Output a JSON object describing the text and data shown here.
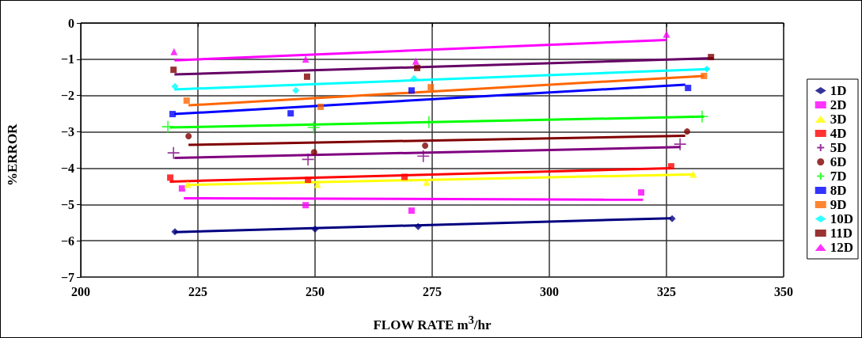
{
  "chart_data": {
    "type": "scatter",
    "xlabel": "FLOW RATE m$^{3}$/hr",
    "ylabel": "%ERROR",
    "xlim": [
      200,
      350
    ],
    "xticks": [
      200,
      225,
      250,
      275,
      300,
      325,
      350
    ],
    "ylim": [
      -7,
      0
    ],
    "yticks": [
      -7,
      -6,
      -5,
      -4,
      -3,
      -2,
      -1,
      0
    ],
    "grid": true,
    "legend": "right",
    "series": [
      {
        "name": "1D",
        "color": "#000080",
        "marker": "diamond",
        "x": [
          220.1,
          250,
          272,
          326.2
        ],
        "values": [
          -5.75,
          -5.68,
          -5.61,
          -5.39
        ]
      },
      {
        "name": "2D",
        "color": "#ff00ff",
        "marker": "square",
        "x": [
          221.6,
          248,
          270.6,
          319.6
        ],
        "values": [
          -4.56,
          -5.02,
          -5.17,
          -4.67
        ]
      },
      {
        "name": "3D",
        "color": "#ffff00",
        "marker": "triangle",
        "x": [
          222.8,
          250.5,
          273.8,
          330.7
        ],
        "values": [
          -4.45,
          -4.45,
          -4.39,
          -4.17
        ]
      },
      {
        "name": "4D",
        "color": "#ff0000",
        "marker": "square",
        "x": [
          219.1,
          248.5,
          269.1,
          326
        ],
        "values": [
          -4.26,
          -4.32,
          -4.24,
          -3.95
        ]
      },
      {
        "name": "5D",
        "color": "#800080",
        "marker": "cross",
        "x": [
          219.8,
          248.5,
          273.1,
          327.9
        ],
        "values": [
          -3.58,
          -3.76,
          -3.67,
          -3.34
        ]
      },
      {
        "name": "6D",
        "color": "#800000",
        "marker": "circle",
        "x": [
          223,
          249.8,
          273.5,
          329.4
        ],
        "values": [
          -3.12,
          -3.56,
          -3.38,
          -2.99
        ]
      },
      {
        "name": "7D",
        "color": "#00ff00",
        "marker": "cross",
        "x": [
          218.6,
          249.7,
          274.3,
          332.6
        ],
        "values": [
          -2.86,
          -2.88,
          -2.73,
          -2.58
        ]
      },
      {
        "name": "8D",
        "color": "#0000ff",
        "marker": "square",
        "x": [
          219.6,
          244.8,
          270.6,
          329.6
        ],
        "values": [
          -2.51,
          -2.49,
          -1.86,
          -1.79
        ]
      },
      {
        "name": "9D",
        "color": "#ff6600",
        "marker": "square",
        "x": [
          222.6,
          251.2,
          274.7,
          333
        ],
        "values": [
          -2.14,
          -2.31,
          -1.77,
          -1.46
        ]
      },
      {
        "name": "10D",
        "color": "#00ffff",
        "marker": "diamond",
        "x": [
          220.1,
          245.9,
          271.1,
          333.6
        ],
        "values": [
          -1.75,
          -1.86,
          -1.53,
          -1.27
        ]
      },
      {
        "name": "11D",
        "color": "#800000",
        "marker": "square",
        "x": [
          219.8,
          248.3,
          271.8,
          334.5
        ],
        "values": [
          -1.29,
          -1.48,
          -1.24,
          -0.94
        ]
      },
      {
        "name": "12D",
        "color": "#ff00ff",
        "marker": "triangle",
        "x": [
          219.9,
          248,
          271.5,
          325
        ],
        "values": [
          -0.79,
          -1.0,
          -1.05,
          -0.31
        ]
      },
      {
        "type": "line",
        "color": "#000080",
        "marker": "none",
        "x": [
          220,
          326
        ],
        "values": [
          -5.76,
          -5.38
        ]
      },
      {
        "type": "line",
        "color": "#ff00ff",
        "marker": "none",
        "x": [
          222,
          320
        ],
        "values": [
          -4.83,
          -4.87
        ]
      },
      {
        "type": "line",
        "color": "#ffff00",
        "marker": "none",
        "x": [
          223,
          331
        ],
        "values": [
          -4.46,
          -4.17
        ]
      },
      {
        "type": "line",
        "color": "#ff0000",
        "marker": "none",
        "x": [
          219,
          326
        ],
        "values": [
          -4.37,
          -4.0
        ]
      },
      {
        "type": "line",
        "color": "#800080",
        "marker": "none",
        "x": [
          220,
          328
        ],
        "values": [
          -3.72,
          -3.42
        ]
      },
      {
        "type": "line",
        "color": "#800000",
        "marker": "none",
        "x": [
          223,
          329
        ],
        "values": [
          -3.36,
          -3.11
        ]
      },
      {
        "type": "line",
        "color": "#00ff00",
        "marker": "none",
        "x": [
          219,
          333
        ],
        "values": [
          -2.88,
          -2.58
        ]
      },
      {
        "type": "line",
        "color": "#0000ff",
        "marker": "none",
        "x": [
          220,
          329
        ],
        "values": [
          -2.51,
          -1.7
        ]
      },
      {
        "type": "line",
        "color": "#ff6600",
        "marker": "none",
        "x": [
          223,
          333
        ],
        "values": [
          -2.27,
          -1.46
        ]
      },
      {
        "type": "line",
        "color": "#00ffff",
        "marker": "none",
        "x": [
          220,
          334
        ],
        "values": [
          -1.83,
          -1.27
        ]
      },
      {
        "type": "line",
        "color": "#660066",
        "marker": "none",
        "x": [
          220,
          335
        ],
        "values": [
          -1.42,
          -0.97
        ]
      },
      {
        "type": "line",
        "color": "#ff00ff",
        "marker": "none",
        "x": [
          220,
          325
        ],
        "values": [
          -1.03,
          -0.47
        ]
      }
    ]
  }
}
